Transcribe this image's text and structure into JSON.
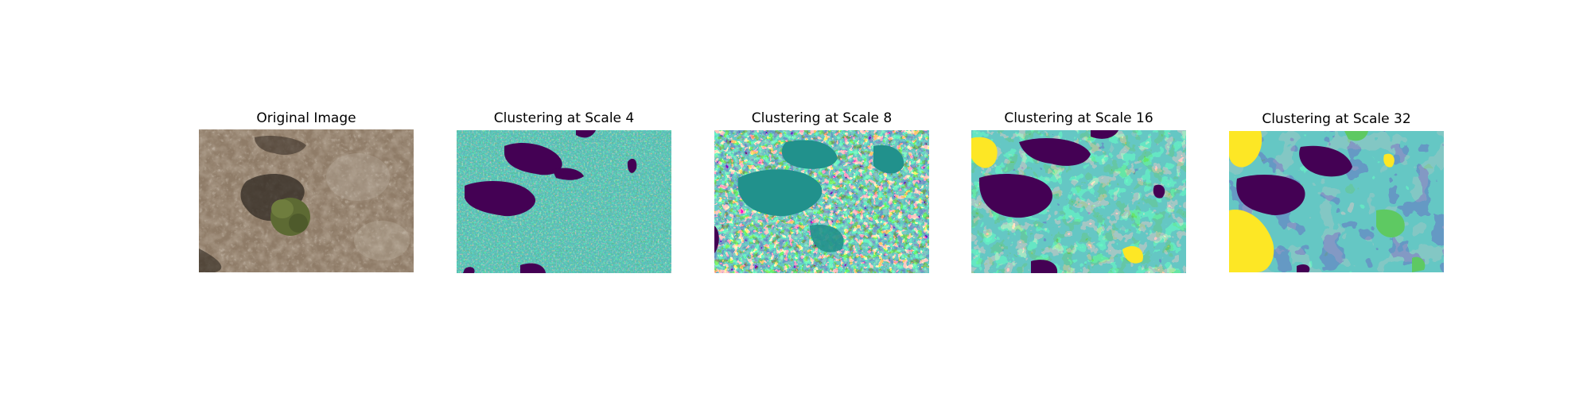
{
  "figure": {
    "panels": [
      {
        "title": "Original Image",
        "kind": "photo"
      },
      {
        "title": "Clustering at Scale 4",
        "kind": "cluster-map",
        "scale": 4
      },
      {
        "title": "Clustering at Scale 8",
        "kind": "cluster-map",
        "scale": 8
      },
      {
        "title": "Clustering at Scale 16",
        "kind": "cluster-map",
        "scale": 16
      },
      {
        "title": "Clustering at Scale 32",
        "kind": "cluster-map",
        "scale": 32
      }
    ],
    "palette": {
      "dark_purple": "#440154",
      "blue": "#3b528b",
      "teal": "#21918c",
      "green": "#5ec962",
      "yellow": "#fde725"
    }
  }
}
